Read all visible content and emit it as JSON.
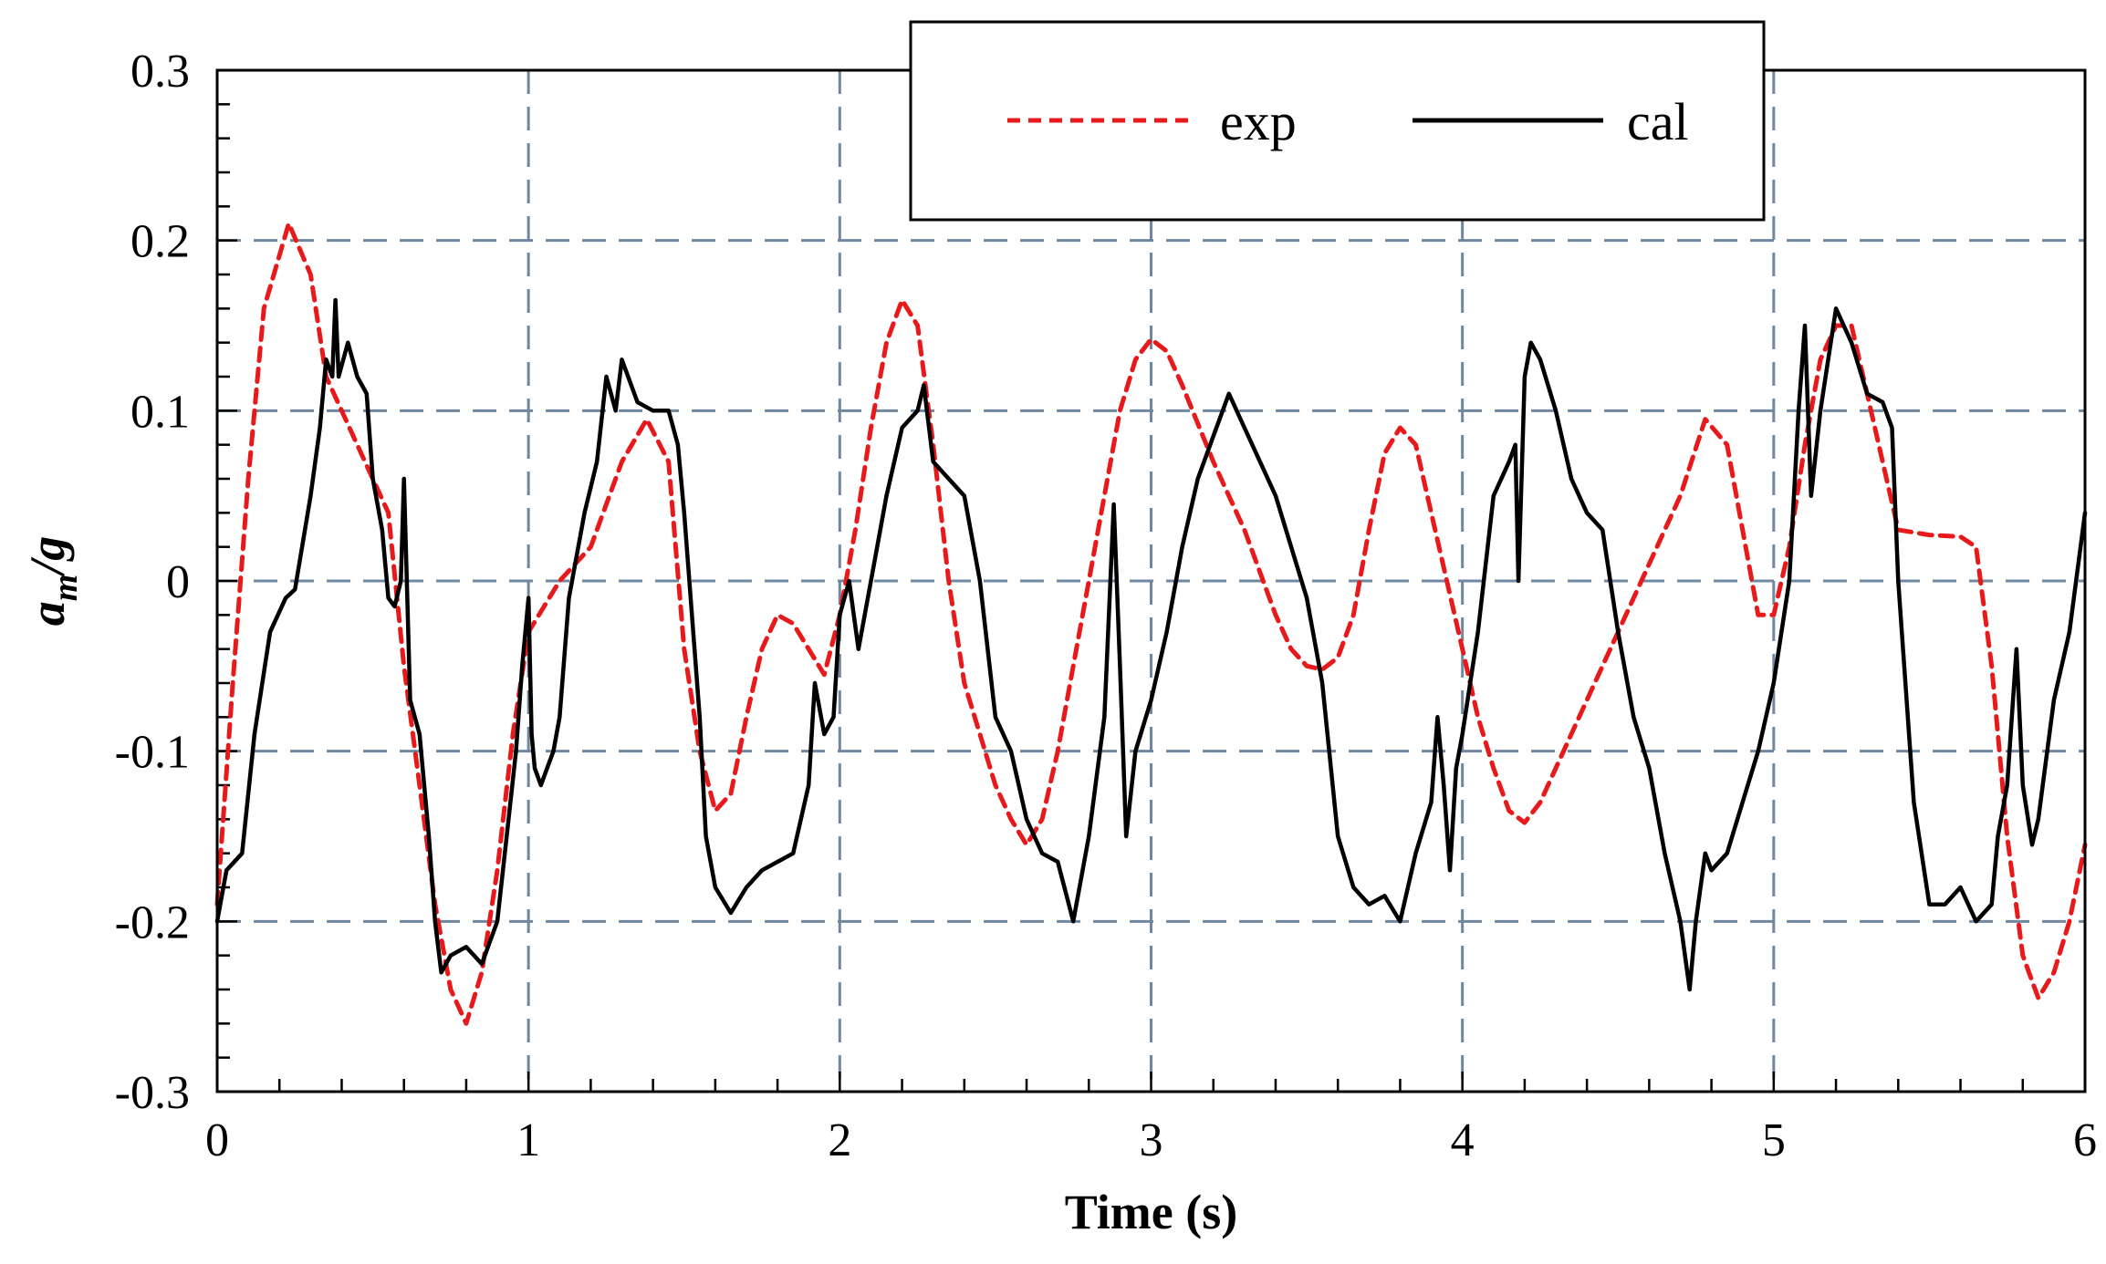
{
  "chart_data": {
    "type": "line",
    "title": "",
    "xlabel": "Time  (s)",
    "ylabel": "a_m/g",
    "ylabel_main": "a",
    "ylabel_sub": "m",
    "ylabel_rest": "/g",
    "xlim": [
      0,
      6
    ],
    "ylim": [
      -0.3,
      0.3
    ],
    "x_ticks": [
      0,
      1,
      2,
      3,
      4,
      5,
      6
    ],
    "y_ticks": [
      -0.3,
      -0.2,
      -0.1,
      0,
      0.1,
      0.2,
      0.3
    ],
    "x_tick_labels": [
      "0",
      "1",
      "2",
      "3",
      "4",
      "5",
      "6"
    ],
    "y_tick_labels": [
      "-0.3",
      "-0.2",
      "-0.1",
      "0",
      "0.1",
      "0.2",
      "0.3"
    ],
    "grid": true,
    "legend_position": "top-center",
    "colors": {
      "exp": "#e8191b",
      "cal": "#000000",
      "grid": "#6f87a0"
    },
    "series": [
      {
        "name": "exp",
        "style": "dashed",
        "points": [
          [
            0,
            -0.19
          ],
          [
            0.05,
            -0.06
          ],
          [
            0.1,
            0.06
          ],
          [
            0.15,
            0.16
          ],
          [
            0.23,
            0.21
          ],
          [
            0.3,
            0.18
          ],
          [
            0.35,
            0.12
          ],
          [
            0.45,
            0.08
          ],
          [
            0.55,
            0.04
          ],
          [
            0.6,
            -0.05
          ],
          [
            0.65,
            -0.12
          ],
          [
            0.7,
            -0.19
          ],
          [
            0.75,
            -0.24
          ],
          [
            0.8,
            -0.26
          ],
          [
            0.85,
            -0.23
          ],
          [
            0.9,
            -0.17
          ],
          [
            0.95,
            -0.09
          ],
          [
            1.0,
            -0.03
          ],
          [
            1.1,
            0.0
          ],
          [
            1.2,
            0.02
          ],
          [
            1.3,
            0.07
          ],
          [
            1.38,
            0.095
          ],
          [
            1.45,
            0.07
          ],
          [
            1.5,
            -0.04
          ],
          [
            1.55,
            -0.1
          ],
          [
            1.6,
            -0.135
          ],
          [
            1.65,
            -0.125
          ],
          [
            1.7,
            -0.08
          ],
          [
            1.75,
            -0.04
          ],
          [
            1.8,
            -0.02
          ],
          [
            1.85,
            -0.025
          ],
          [
            1.9,
            -0.04
          ],
          [
            1.95,
            -0.055
          ],
          [
            2.0,
            -0.02
          ],
          [
            2.05,
            0.03
          ],
          [
            2.1,
            0.09
          ],
          [
            2.15,
            0.14
          ],
          [
            2.2,
            0.165
          ],
          [
            2.25,
            0.15
          ],
          [
            2.3,
            0.08
          ],
          [
            2.35,
            0.0
          ],
          [
            2.4,
            -0.06
          ],
          [
            2.45,
            -0.09
          ],
          [
            2.5,
            -0.12
          ],
          [
            2.55,
            -0.14
          ],
          [
            2.6,
            -0.155
          ],
          [
            2.65,
            -0.14
          ],
          [
            2.7,
            -0.1
          ],
          [
            2.75,
            -0.05
          ],
          [
            2.8,
            0.0
          ],
          [
            2.85,
            0.05
          ],
          [
            2.9,
            0.1
          ],
          [
            2.95,
            0.13
          ],
          [
            3.0,
            0.142
          ],
          [
            3.05,
            0.135
          ],
          [
            3.1,
            0.115
          ],
          [
            3.2,
            0.07
          ],
          [
            3.3,
            0.03
          ],
          [
            3.4,
            -0.02
          ],
          [
            3.45,
            -0.04
          ],
          [
            3.5,
            -0.05
          ],
          [
            3.55,
            -0.052
          ],
          [
            3.6,
            -0.045
          ],
          [
            3.65,
            -0.02
          ],
          [
            3.7,
            0.03
          ],
          [
            3.75,
            0.075
          ],
          [
            3.8,
            0.09
          ],
          [
            3.85,
            0.08
          ],
          [
            3.9,
            0.04
          ],
          [
            3.95,
            0.0
          ],
          [
            4.0,
            -0.04
          ],
          [
            4.05,
            -0.08
          ],
          [
            4.1,
            -0.11
          ],
          [
            4.15,
            -0.135
          ],
          [
            4.2,
            -0.142
          ],
          [
            4.25,
            -0.13
          ],
          [
            4.3,
            -0.11
          ],
          [
            4.4,
            -0.07
          ],
          [
            4.5,
            -0.03
          ],
          [
            4.6,
            0.01
          ],
          [
            4.7,
            0.05
          ],
          [
            4.78,
            0.095
          ],
          [
            4.85,
            0.08
          ],
          [
            4.9,
            0.03
          ],
          [
            4.95,
            -0.02
          ],
          [
            5.0,
            -0.02
          ],
          [
            5.05,
            0.02
          ],
          [
            5.1,
            0.08
          ],
          [
            5.15,
            0.13
          ],
          [
            5.2,
            0.15
          ],
          [
            5.25,
            0.15
          ],
          [
            5.3,
            0.11
          ],
          [
            5.35,
            0.07
          ],
          [
            5.4,
            0.03
          ],
          [
            5.5,
            0.027
          ],
          [
            5.6,
            0.026
          ],
          [
            5.65,
            0.02
          ],
          [
            5.7,
            -0.05
          ],
          [
            5.75,
            -0.15
          ],
          [
            5.8,
            -0.22
          ],
          [
            5.85,
            -0.245
          ],
          [
            5.9,
            -0.23
          ],
          [
            5.95,
            -0.2
          ],
          [
            6.0,
            -0.155
          ]
        ]
      },
      {
        "name": "cal",
        "style": "solid",
        "points": [
          [
            0,
            -0.2
          ],
          [
            0.03,
            -0.17
          ],
          [
            0.08,
            -0.16
          ],
          [
            0.12,
            -0.09
          ],
          [
            0.17,
            -0.03
          ],
          [
            0.22,
            -0.01
          ],
          [
            0.25,
            -0.005
          ],
          [
            0.3,
            0.05
          ],
          [
            0.33,
            0.09
          ],
          [
            0.35,
            0.13
          ],
          [
            0.37,
            0.12
          ],
          [
            0.38,
            0.165
          ],
          [
            0.39,
            0.12
          ],
          [
            0.42,
            0.14
          ],
          [
            0.45,
            0.12
          ],
          [
            0.48,
            0.11
          ],
          [
            0.5,
            0.06
          ],
          [
            0.53,
            0.03
          ],
          [
            0.55,
            -0.01
          ],
          [
            0.57,
            -0.015
          ],
          [
            0.59,
            0.0
          ],
          [
            0.6,
            0.06
          ],
          [
            0.62,
            -0.07
          ],
          [
            0.65,
            -0.09
          ],
          [
            0.68,
            -0.15
          ],
          [
            0.7,
            -0.2
          ],
          [
            0.72,
            -0.23
          ],
          [
            0.75,
            -0.22
          ],
          [
            0.8,
            -0.215
          ],
          [
            0.85,
            -0.225
          ],
          [
            0.9,
            -0.2
          ],
          [
            0.93,
            -0.15
          ],
          [
            0.96,
            -0.1
          ],
          [
            0.98,
            -0.05
          ],
          [
            1.0,
            -0.01
          ],
          [
            1.01,
            -0.09
          ],
          [
            1.02,
            -0.11
          ],
          [
            1.04,
            -0.12
          ],
          [
            1.06,
            -0.11
          ],
          [
            1.08,
            -0.1
          ],
          [
            1.1,
            -0.08
          ],
          [
            1.13,
            -0.01
          ],
          [
            1.18,
            0.04
          ],
          [
            1.22,
            0.07
          ],
          [
            1.25,
            0.12
          ],
          [
            1.28,
            0.1
          ],
          [
            1.3,
            0.13
          ],
          [
            1.35,
            0.105
          ],
          [
            1.4,
            0.1
          ],
          [
            1.45,
            0.1
          ],
          [
            1.48,
            0.08
          ],
          [
            1.5,
            0.04
          ],
          [
            1.55,
            -0.08
          ],
          [
            1.57,
            -0.15
          ],
          [
            1.6,
            -0.18
          ],
          [
            1.65,
            -0.195
          ],
          [
            1.7,
            -0.18
          ],
          [
            1.75,
            -0.17
          ],
          [
            1.8,
            -0.165
          ],
          [
            1.85,
            -0.16
          ],
          [
            1.9,
            -0.12
          ],
          [
            1.92,
            -0.06
          ],
          [
            1.95,
            -0.09
          ],
          [
            1.98,
            -0.08
          ],
          [
            2.0,
            -0.02
          ],
          [
            2.03,
            0.0
          ],
          [
            2.06,
            -0.04
          ],
          [
            2.1,
            0.0
          ],
          [
            2.15,
            0.05
          ],
          [
            2.2,
            0.09
          ],
          [
            2.25,
            0.1
          ],
          [
            2.27,
            0.115
          ],
          [
            2.3,
            0.07
          ],
          [
            2.35,
            0.06
          ],
          [
            2.4,
            0.05
          ],
          [
            2.45,
            0.0
          ],
          [
            2.5,
            -0.08
          ],
          [
            2.55,
            -0.1
          ],
          [
            2.6,
            -0.14
          ],
          [
            2.65,
            -0.16
          ],
          [
            2.7,
            -0.165
          ],
          [
            2.75,
            -0.2
          ],
          [
            2.8,
            -0.15
          ],
          [
            2.85,
            -0.08
          ],
          [
            2.88,
            0.045
          ],
          [
            2.9,
            -0.05
          ],
          [
            2.92,
            -0.15
          ],
          [
            2.95,
            -0.1
          ],
          [
            3.0,
            -0.07
          ],
          [
            3.05,
            -0.03
          ],
          [
            3.1,
            0.02
          ],
          [
            3.15,
            0.06
          ],
          [
            3.2,
            0.085
          ],
          [
            3.25,
            0.11
          ],
          [
            3.3,
            0.09
          ],
          [
            3.35,
            0.07
          ],
          [
            3.4,
            0.05
          ],
          [
            3.45,
            0.02
          ],
          [
            3.5,
            -0.01
          ],
          [
            3.55,
            -0.06
          ],
          [
            3.6,
            -0.15
          ],
          [
            3.65,
            -0.18
          ],
          [
            3.7,
            -0.19
          ],
          [
            3.75,
            -0.185
          ],
          [
            3.8,
            -0.2
          ],
          [
            3.85,
            -0.16
          ],
          [
            3.9,
            -0.13
          ],
          [
            3.92,
            -0.08
          ],
          [
            3.94,
            -0.12
          ],
          [
            3.96,
            -0.17
          ],
          [
            3.98,
            -0.11
          ],
          [
            4.0,
            -0.09
          ],
          [
            4.05,
            -0.03
          ],
          [
            4.1,
            0.05
          ],
          [
            4.15,
            0.07
          ],
          [
            4.17,
            0.08
          ],
          [
            4.18,
            0.0
          ],
          [
            4.2,
            0.12
          ],
          [
            4.22,
            0.14
          ],
          [
            4.25,
            0.13
          ],
          [
            4.3,
            0.1
          ],
          [
            4.35,
            0.06
          ],
          [
            4.4,
            0.04
          ],
          [
            4.45,
            0.03
          ],
          [
            4.5,
            -0.03
          ],
          [
            4.55,
            -0.08
          ],
          [
            4.6,
            -0.11
          ],
          [
            4.65,
            -0.16
          ],
          [
            4.7,
            -0.2
          ],
          [
            4.73,
            -0.24
          ],
          [
            4.75,
            -0.2
          ],
          [
            4.78,
            -0.16
          ],
          [
            4.8,
            -0.17
          ],
          [
            4.85,
            -0.16
          ],
          [
            4.9,
            -0.13
          ],
          [
            4.95,
            -0.1
          ],
          [
            5.0,
            -0.06
          ],
          [
            5.05,
            0.0
          ],
          [
            5.08,
            0.1
          ],
          [
            5.1,
            0.15
          ],
          [
            5.12,
            0.05
          ],
          [
            5.15,
            0.1
          ],
          [
            5.2,
            0.16
          ],
          [
            5.25,
            0.14
          ],
          [
            5.3,
            0.11
          ],
          [
            5.35,
            0.105
          ],
          [
            5.38,
            0.09
          ],
          [
            5.4,
            0.0
          ],
          [
            5.45,
            -0.13
          ],
          [
            5.5,
            -0.19
          ],
          [
            5.55,
            -0.19
          ],
          [
            5.6,
            -0.18
          ],
          [
            5.65,
            -0.2
          ],
          [
            5.7,
            -0.19
          ],
          [
            5.72,
            -0.15
          ],
          [
            5.75,
            -0.12
          ],
          [
            5.78,
            -0.04
          ],
          [
            5.8,
            -0.12
          ],
          [
            5.83,
            -0.155
          ],
          [
            5.85,
            -0.14
          ],
          [
            5.9,
            -0.07
          ],
          [
            5.95,
            -0.03
          ],
          [
            6.0,
            0.04
          ]
        ]
      }
    ]
  }
}
